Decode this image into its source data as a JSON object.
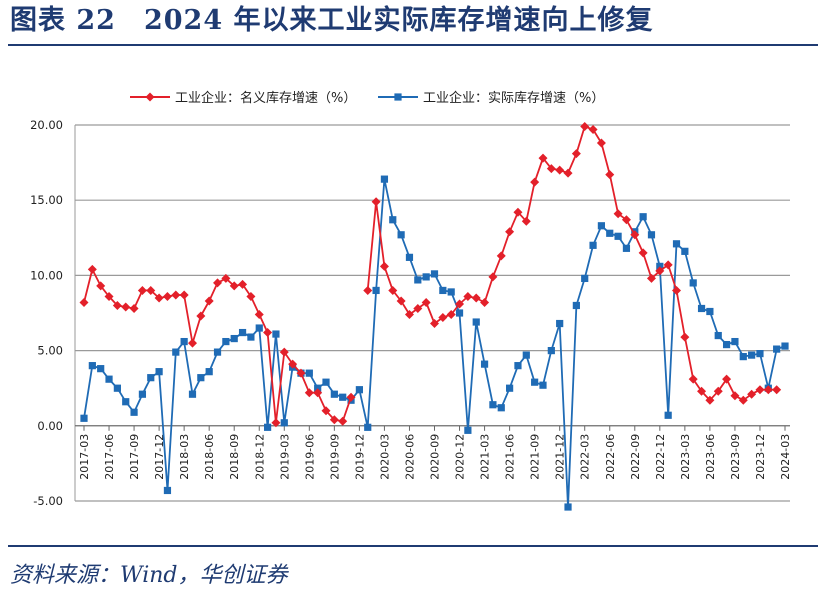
{
  "page": {
    "title": "图表 22　2024 年以来工业实际库存增速向上修复",
    "source": "资料来源：Wind，华创证券"
  },
  "colors": {
    "nominal": "#e3202a",
    "real": "#1f6bb5",
    "grid": "#9a9a9a",
    "title": "#1f3b72"
  },
  "chart_data": {
    "type": "line",
    "title": "",
    "xlabel": "",
    "ylabel": "",
    "ylim": [
      -5,
      20
    ],
    "yticks": [
      "20.00",
      "15.00",
      "10.00",
      "5.00",
      "0.00",
      "-5.00"
    ],
    "grid": true,
    "legend_position": "top",
    "x": [
      "2017-03",
      "2017-04",
      "2017-05",
      "2017-06",
      "2017-07",
      "2017-08",
      "2017-09",
      "2017-10",
      "2017-11",
      "2017-12",
      "2018-01",
      "2018-02",
      "2018-03",
      "2018-04",
      "2018-05",
      "2018-06",
      "2018-07",
      "2018-08",
      "2018-09",
      "2018-10",
      "2018-11",
      "2018-12",
      "2019-01",
      "2019-02",
      "2019-03",
      "2019-04",
      "2019-05",
      "2019-06",
      "2019-07",
      "2019-08",
      "2019-09",
      "2019-10",
      "2019-11",
      "2019-12",
      "2020-01",
      "2020-02",
      "2020-03",
      "2020-04",
      "2020-05",
      "2020-06",
      "2020-07",
      "2020-08",
      "2020-09",
      "2020-10",
      "2020-11",
      "2020-12",
      "2021-01",
      "2021-02",
      "2021-03",
      "2021-04",
      "2021-05",
      "2021-06",
      "2021-07",
      "2021-08",
      "2021-09",
      "2021-10",
      "2021-11",
      "2021-12",
      "2022-01",
      "2022-02",
      "2022-03",
      "2022-04",
      "2022-05",
      "2022-06",
      "2022-07",
      "2022-08",
      "2022-09",
      "2022-10",
      "2022-11",
      "2022-12",
      "2023-01",
      "2023-02",
      "2023-03",
      "2023-04",
      "2023-05",
      "2023-06",
      "2023-07",
      "2023-08",
      "2023-09",
      "2023-10",
      "2023-11",
      "2023-12",
      "2024-01",
      "2024-02",
      "2024-03"
    ],
    "xtick_labels": [
      "2017-03",
      "2017-06",
      "2017-09",
      "2017-12",
      "2018-03",
      "2018-06",
      "2018-09",
      "2018-12",
      "2019-03",
      "2019-06",
      "2019-09",
      "2019-12",
      "2020-03",
      "2020-06",
      "2020-09",
      "2020-12",
      "2021-03",
      "2021-06",
      "2021-09",
      "2021-12",
      "2022-03",
      "2022-06",
      "2022-09",
      "2022-12",
      "2023-03",
      "2023-06",
      "2023-09",
      "2023-12",
      "2024-03"
    ],
    "series": [
      {
        "name": "工业企业：名义库存增速（%）",
        "marker": "diamond",
        "values": [
          8.2,
          10.4,
          9.3,
          8.6,
          8.0,
          7.9,
          7.8,
          9.0,
          9.0,
          8.5,
          8.6,
          8.7,
          8.7,
          5.5,
          7.3,
          8.3,
          9.5,
          9.8,
          9.3,
          9.4,
          8.6,
          7.4,
          6.2,
          0.2,
          4.9,
          4.1,
          3.5,
          2.2,
          2.2,
          1.0,
          0.4,
          0.3,
          1.9,
          null,
          9.0,
          14.9,
          10.6,
          9.0,
          8.3,
          7.4,
          7.8,
          8.2,
          6.8,
          7.2,
          7.4,
          8.1,
          8.6,
          8.5,
          8.2,
          9.9,
          11.3,
          12.9,
          14.2,
          13.6,
          16.2,
          17.8,
          17.1,
          17.0,
          16.8,
          18.1,
          19.9,
          19.7,
          18.8,
          16.7,
          14.1,
          13.7,
          12.7,
          11.5,
          9.8,
          10.3,
          10.7,
          9.0,
          5.9,
          3.1,
          2.3,
          1.7,
          2.3,
          3.1,
          2.0,
          1.7,
          2.1,
          2.4,
          2.4,
          2.4,
          null
        ]
      },
      {
        "name": "工业企业：实际库存增速（%）",
        "marker": "square",
        "values": [
          0.5,
          4.0,
          3.8,
          3.1,
          2.5,
          1.6,
          0.9,
          2.1,
          3.2,
          3.6,
          -4.3,
          4.9,
          5.6,
          2.1,
          3.2,
          3.6,
          4.9,
          5.6,
          5.8,
          6.2,
          5.9,
          6.5,
          -0.1,
          6.1,
          0.2,
          3.9,
          3.5,
          3.5,
          2.5,
          2.9,
          2.1,
          1.9,
          1.7,
          2.4,
          -0.1,
          9.0,
          16.4,
          13.7,
          12.7,
          11.2,
          9.7,
          9.9,
          10.1,
          9.0,
          8.9,
          7.5,
          -0.3,
          6.9,
          4.1,
          1.4,
          1.2,
          2.5,
          4.0,
          4.7,
          2.9,
          2.7,
          5.0,
          6.8,
          -5.4,
          8.0,
          9.8,
          12.0,
          13.3,
          12.8,
          12.6,
          11.8,
          12.9,
          13.9,
          12.7,
          10.6,
          0.7,
          12.1,
          11.6,
          9.5,
          7.8,
          7.6,
          6.0,
          5.4,
          5.6,
          4.6,
          4.7,
          4.8,
          2.5,
          5.1,
          5.3
        ]
      }
    ]
  }
}
